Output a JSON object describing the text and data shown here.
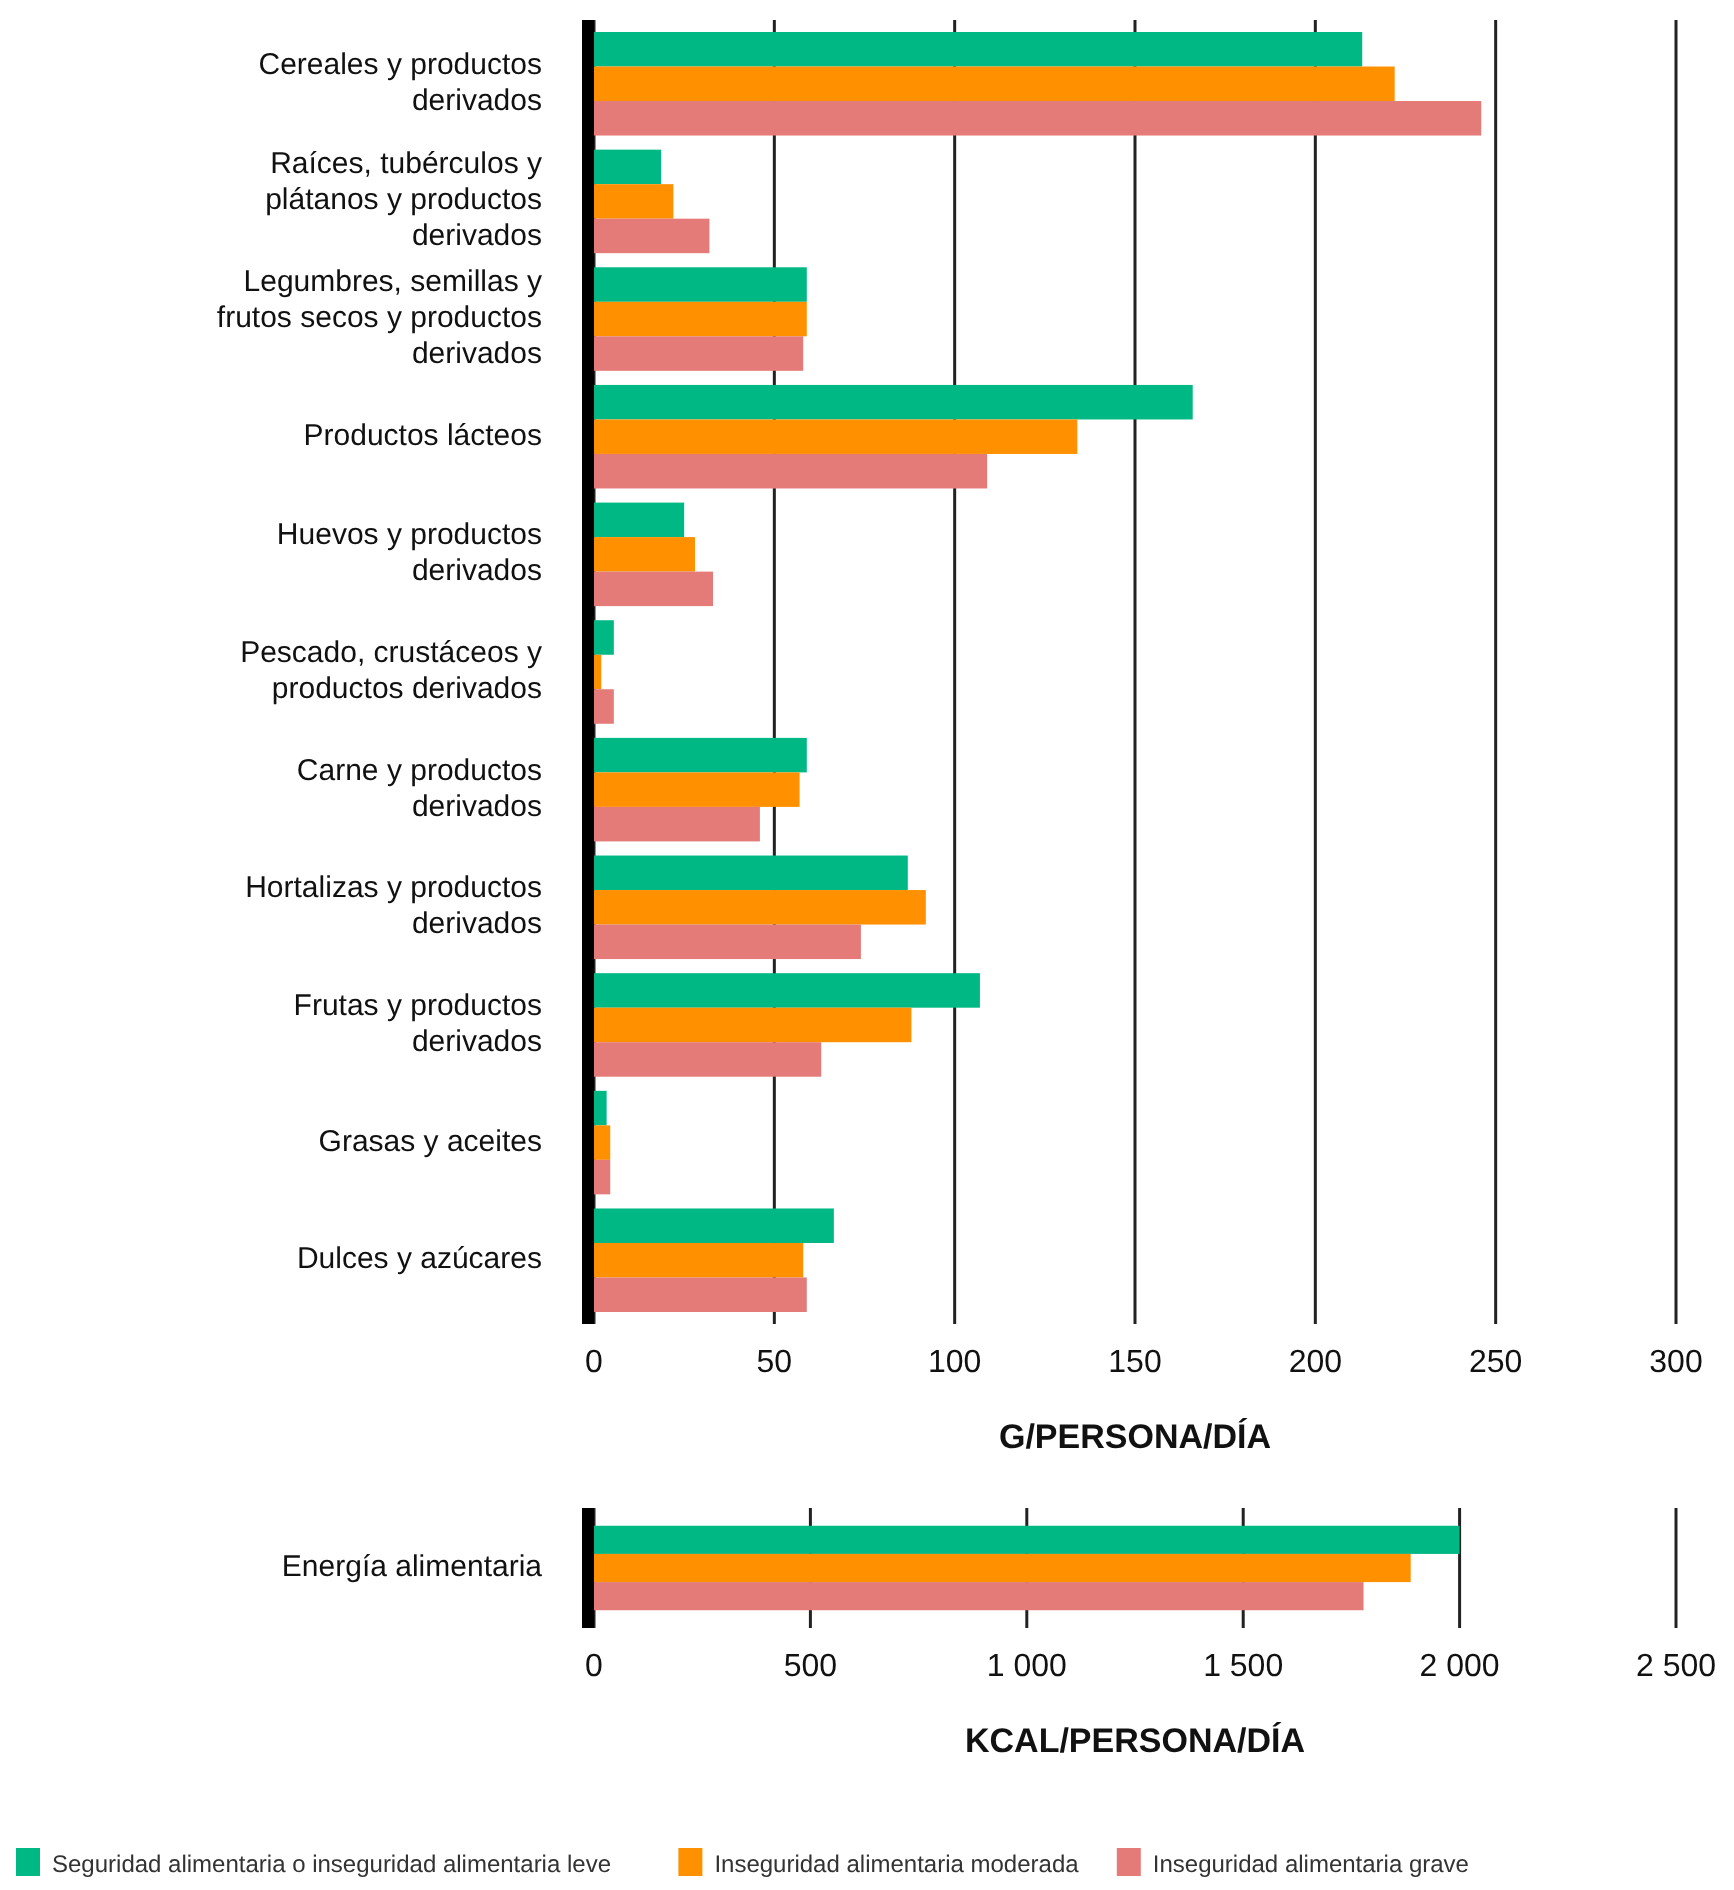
{
  "chart_data": [
    {
      "type": "bar",
      "orientation": "horizontal",
      "xlabel": "G/PERSONA/DÍA",
      "categories": [
        "Cereales y productos derivados",
        "Raíces, tubérculos y plátanos y productos derivados",
        "Legumbres, semillas y frutos secos y productos derivados",
        "Productos lácteos",
        "Huevos y productos derivados",
        "Pescado, crustáceos y productos derivados",
        "Carne y productos derivados",
        "Hortalizas y productos derivados",
        "Frutas y productos derivados",
        "Grasas y aceites",
        "Dulces y azúcares"
      ],
      "series": [
        {
          "color": "#00b884",
          "values": [
            213,
            18.6,
            59,
            166,
            25,
            5.5,
            59,
            87,
            107,
            3.5,
            66.5
          ]
        },
        {
          "color": "#ff9100",
          "values": [
            222,
            22,
            59,
            134,
            28,
            2,
            57,
            92,
            88,
            4.5,
            58
          ]
        },
        {
          "color": "#e57b78",
          "values": [
            246,
            32,
            58,
            109,
            33,
            5.5,
            46,
            74,
            63,
            4.5,
            59
          ]
        }
      ],
      "xlim": [
        0,
        300
      ],
      "xticks": [
        0,
        50,
        100,
        150,
        200,
        250,
        300
      ],
      "grid": "x"
    },
    {
      "type": "bar",
      "orientation": "horizontal",
      "xlabel": "KCAL/PERSONA/DÍA",
      "categories": [
        "Energía alimentaria"
      ],
      "series": [
        {
          "name": "Seguridad alimentaria o inseguridad alimentaria leve",
          "color": "#00b884",
          "values": [
            2000
          ]
        },
        {
          "name": "Inseguridad alimentaria moderada",
          "color": "#ff9100",
          "values": [
            1887
          ]
        },
        {
          "name": "Inseguridad alimentaria grave",
          "color": "#e57b78",
          "values": [
            1778
          ]
        }
      ],
      "xlim": [
        0,
        2500
      ],
      "xticks": [
        0,
        500,
        {
          "value": 1000,
          "label": "1 000"
        },
        {
          "value": 1500,
          "label": "1 500"
        },
        {
          "value": 2000,
          "label": "2 000"
        },
        {
          "value": 2500,
          "label": "2 500"
        }
      ],
      "grid": "x",
      "legend": "bottom"
    }
  ]
}
